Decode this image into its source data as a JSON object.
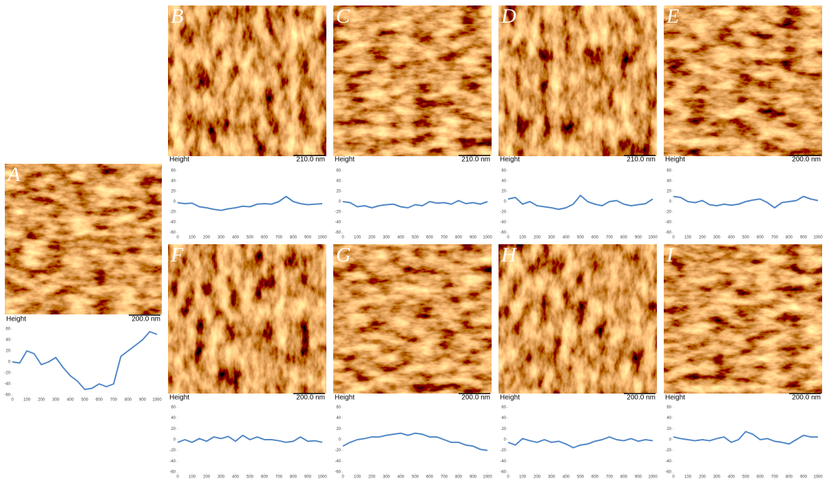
{
  "chart_data": [
    {
      "type": "line",
      "title": "A",
      "image_label": "Height",
      "scale_bar": "200.0 nm",
      "x": [
        0,
        50,
        100,
        150,
        200,
        250,
        300,
        350,
        400,
        450,
        500,
        550,
        600,
        650,
        700,
        750,
        800,
        850,
        900,
        950,
        1000
      ],
      "series": [
        {
          "color": "#4f86c6",
          "values": [
            0,
            -2,
            20,
            15,
            -5,
            0,
            8,
            -10,
            -25,
            -35,
            -50,
            -48,
            -40,
            -45,
            -40,
            10,
            20,
            30,
            40,
            55,
            50
          ]
        }
      ],
      "xlim": [
        0,
        1000
      ],
      "xticks": [
        0,
        100,
        200,
        300,
        400,
        500,
        600,
        700,
        800,
        900,
        1000
      ],
      "ylim": [
        -60,
        60
      ],
      "yticks": [
        -60,
        -40,
        -20,
        0,
        20,
        40,
        60
      ]
    },
    {
      "type": "line",
      "title": "B",
      "image_label": "Height",
      "scale_bar": "210.0 nm",
      "x": [
        0,
        50,
        100,
        150,
        200,
        250,
        300,
        350,
        400,
        450,
        500,
        550,
        600,
        650,
        700,
        750,
        800,
        850,
        900,
        950,
        1000
      ],
      "series": [
        {
          "color": "#4f86c6",
          "values": [
            -2,
            -4,
            -3,
            -10,
            -12,
            -15,
            -17,
            -14,
            -12,
            -9,
            -10,
            -5,
            -4,
            -5,
            0,
            10,
            0,
            -4,
            -6,
            -5,
            -4
          ]
        }
      ],
      "xlim": [
        0,
        1000
      ],
      "xticks": [
        0,
        100,
        200,
        300,
        400,
        500,
        600,
        700,
        800,
        900,
        1000
      ],
      "ylim": [
        -60,
        60
      ],
      "yticks": [
        -60,
        -40,
        -20,
        0,
        20,
        40,
        60
      ]
    },
    {
      "type": "line",
      "title": "C",
      "image_label": "Height",
      "scale_bar": "210.0 nm",
      "x": [
        0,
        50,
        100,
        150,
        200,
        250,
        300,
        350,
        400,
        450,
        500,
        550,
        600,
        650,
        700,
        750,
        800,
        850,
        900,
        950,
        1000
      ],
      "series": [
        {
          "color": "#4f86c6",
          "values": [
            0,
            -2,
            -10,
            -8,
            -12,
            -8,
            -6,
            -5,
            -10,
            -12,
            -6,
            -8,
            0,
            -3,
            -2,
            -5,
            2,
            -4,
            -2,
            -5,
            0
          ]
        }
      ],
      "xlim": [
        0,
        1000
      ],
      "xticks": [
        0,
        100,
        200,
        300,
        400,
        500,
        600,
        700,
        800,
        900,
        1000
      ],
      "ylim": [
        -60,
        60
      ],
      "yticks": [
        -60,
        -40,
        -20,
        0,
        20,
        40,
        60
      ]
    },
    {
      "type": "line",
      "title": "D",
      "image_label": "Height",
      "scale_bar": "210.0 nm",
      "x": [
        0,
        50,
        100,
        150,
        200,
        250,
        300,
        350,
        400,
        450,
        500,
        550,
        600,
        650,
        700,
        750,
        800,
        850,
        900,
        950,
        1000
      ],
      "series": [
        {
          "color": "#4f86c6",
          "values": [
            5,
            8,
            -5,
            0,
            -8,
            -10,
            -12,
            -15,
            -12,
            -5,
            12,
            0,
            -5,
            -8,
            0,
            2,
            -5,
            -8,
            -6,
            -4,
            5
          ]
        }
      ],
      "xlim": [
        0,
        1000
      ],
      "xticks": [
        0,
        100,
        200,
        300,
        400,
        500,
        600,
        700,
        800,
        900,
        1000
      ],
      "ylim": [
        -60,
        60
      ],
      "yticks": [
        -60,
        -40,
        -20,
        0,
        20,
        40,
        60
      ]
    },
    {
      "type": "line",
      "title": "E",
      "image_label": "Height",
      "scale_bar": "200.0 nm",
      "x": [
        0,
        50,
        100,
        150,
        200,
        250,
        300,
        350,
        400,
        450,
        500,
        550,
        600,
        650,
        700,
        750,
        800,
        850,
        900,
        950,
        1000
      ],
      "series": [
        {
          "color": "#4f86c6",
          "values": [
            10,
            8,
            0,
            -2,
            2,
            -6,
            -8,
            -5,
            -7,
            -5,
            0,
            3,
            5,
            -2,
            -12,
            -2,
            0,
            2,
            10,
            5,
            2
          ]
        }
      ],
      "xlim": [
        0,
        1000
      ],
      "xticks": [
        0,
        100,
        200,
        300,
        400,
        500,
        600,
        700,
        800,
        900,
        1000
      ],
      "ylim": [
        -60,
        60
      ],
      "yticks": [
        -60,
        -40,
        -20,
        0,
        20,
        40,
        60
      ]
    },
    {
      "type": "line",
      "title": "F",
      "image_label": "Height",
      "scale_bar": "200.0 nm",
      "x": [
        0,
        50,
        100,
        150,
        200,
        250,
        300,
        350,
        400,
        450,
        500,
        550,
        600,
        650,
        700,
        750,
        800,
        850,
        900,
        950,
        1000
      ],
      "series": [
        {
          "color": "#4f86c6",
          "values": [
            -5,
            0,
            -5,
            2,
            -3,
            5,
            2,
            6,
            -3,
            8,
            0,
            5,
            0,
            0,
            -2,
            -5,
            -3,
            5,
            -3,
            -2,
            -5
          ]
        }
      ],
      "xlim": [
        0,
        1000
      ],
      "xticks": [
        0,
        100,
        200,
        300,
        400,
        500,
        600,
        700,
        800,
        900,
        1000
      ],
      "ylim": [
        -60,
        60
      ],
      "yticks": [
        -60,
        -40,
        -20,
        0,
        20,
        40,
        60
      ]
    },
    {
      "type": "line",
      "title": "G",
      "image_label": "Height",
      "scale_bar": "200.0 nm",
      "x": [
        0,
        50,
        100,
        150,
        200,
        250,
        300,
        350,
        400,
        450,
        500,
        550,
        600,
        650,
        700,
        750,
        800,
        850,
        900,
        950,
        1000
      ],
      "series": [
        {
          "color": "#4f86c6",
          "values": [
            -12,
            -5,
            0,
            2,
            5,
            5,
            8,
            10,
            12,
            8,
            12,
            10,
            5,
            5,
            0,
            -5,
            -5,
            -10,
            -12,
            -18,
            -20
          ]
        }
      ],
      "xlim": [
        0,
        1000
      ],
      "xticks": [
        0,
        100,
        200,
        300,
        400,
        500,
        600,
        700,
        800,
        900,
        1000
      ],
      "ylim": [
        -60,
        60
      ],
      "yticks": [
        -60,
        -40,
        -20,
        0,
        20,
        40,
        60
      ]
    },
    {
      "type": "line",
      "title": "H",
      "image_label": "Height",
      "scale_bar": "200.0 nm",
      "x": [
        0,
        50,
        100,
        150,
        200,
        250,
        300,
        350,
        400,
        450,
        500,
        550,
        600,
        650,
        700,
        750,
        800,
        850,
        900,
        950,
        1000
      ],
      "series": [
        {
          "color": "#4f86c6",
          "values": [
            -5,
            -10,
            2,
            -2,
            -5,
            0,
            -5,
            -3,
            -8,
            -15,
            -10,
            -8,
            -3,
            0,
            5,
            0,
            -2,
            2,
            -3,
            0,
            -2
          ]
        }
      ],
      "xlim": [
        0,
        1000
      ],
      "xticks": [
        0,
        100,
        200,
        300,
        400,
        500,
        600,
        700,
        800,
        900,
        1000
      ],
      "ylim": [
        -60,
        60
      ],
      "yticks": [
        -60,
        -40,
        -20,
        0,
        20,
        40,
        60
      ]
    },
    {
      "type": "line",
      "title": "I",
      "image_label": "Height",
      "scale_bar": "200.0 nm",
      "x": [
        0,
        50,
        100,
        150,
        200,
        250,
        300,
        350,
        400,
        450,
        500,
        550,
        600,
        650,
        700,
        750,
        800,
        850,
        900,
        950,
        1000
      ],
      "series": [
        {
          "color": "#4f86c6",
          "values": [
            5,
            2,
            0,
            -2,
            0,
            -2,
            2,
            5,
            -5,
            0,
            15,
            10,
            0,
            2,
            -3,
            -5,
            -8,
            0,
            8,
            5,
            5
          ]
        }
      ],
      "xlim": [
        0,
        1000
      ],
      "xticks": [
        0,
        100,
        200,
        300,
        400,
        500,
        600,
        700,
        800,
        900,
        1000
      ],
      "ylim": [
        -60,
        60
      ],
      "yticks": [
        -60,
        -40,
        -20,
        0,
        20,
        40,
        60
      ]
    }
  ]
}
